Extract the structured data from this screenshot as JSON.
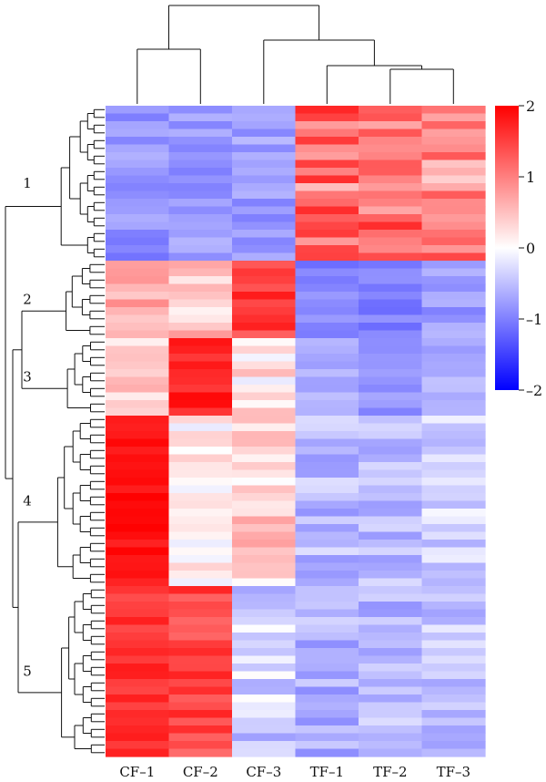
{
  "chart_data": {
    "type": "heatmap",
    "columns": [
      "CF–1",
      "CF–2",
      "CF–3",
      "TF–1",
      "TF–2",
      "TF–3"
    ],
    "row_clusters": [
      {
        "label": "1",
        "rows": 20,
        "means": [
          -0.85,
          -0.8,
          -0.75,
          1.1,
          1.05,
          0.9
        ],
        "vary": [
          0.25,
          0.25,
          0.25,
          0.6,
          0.6,
          0.55
        ]
      },
      {
        "label": "2",
        "rows": 10,
        "means": [
          0.7,
          0.45,
          1.45,
          -0.9,
          -0.95,
          -0.8
        ],
        "vary": [
          0.35,
          0.35,
          0.35,
          0.25,
          0.25,
          0.25
        ]
      },
      {
        "label": "3",
        "rows": 10,
        "means": [
          0.3,
          1.75,
          0.2,
          -0.7,
          -0.8,
          -0.65
        ],
        "vary": [
          0.35,
          0.2,
          0.4,
          0.2,
          0.2,
          0.2
        ]
      },
      {
        "label": "4",
        "rows": 22,
        "means": [
          1.85,
          0.1,
          0.35,
          -0.55,
          -0.5,
          -0.35
        ],
        "vary": [
          0.15,
          0.35,
          0.4,
          0.3,
          0.3,
          0.3
        ]
      },
      {
        "label": "5",
        "rows": 22,
        "means": [
          1.6,
          1.45,
          -0.35,
          -0.6,
          -0.55,
          -0.45
        ],
        "vary": [
          0.2,
          0.3,
          0.4,
          0.3,
          0.3,
          0.3
        ]
      }
    ],
    "column_dendrogram_order": [
      "CF–1",
      "CF–2",
      "CF–3",
      "TF–1",
      "TF–2",
      "TF–3"
    ],
    "color_scale": {
      "min": -2,
      "max": 2,
      "colors": [
        "#0000ff",
        "#ffffff",
        "#ff0000"
      ],
      "ticks": [
        "2",
        "1",
        "0",
        "–1",
        "–2"
      ]
    },
    "legend_position": "right"
  }
}
